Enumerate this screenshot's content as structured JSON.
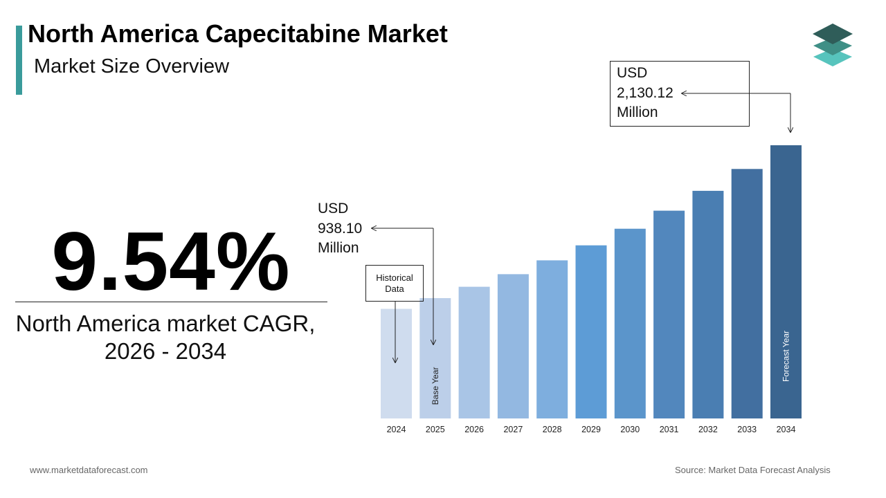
{
  "header": {
    "title": "North America Capecitabine Market",
    "subtitle": "Market Size Overview"
  },
  "cagr": {
    "value": "9.54%",
    "caption_line1": "North America market CAGR,",
    "caption_line2": "2026 - 2034"
  },
  "callouts": {
    "start": {
      "line1": "USD",
      "line2": "938.10",
      "line3": "Million"
    },
    "end": {
      "line1": "USD",
      "line2": "2,130.12",
      "line3": "Million"
    },
    "historical_line1": "Historical",
    "historical_line2": "Data"
  },
  "footer": {
    "website": "www.marketdataforecast.com",
    "source": "Source: Market Data Forecast Analysis"
  },
  "colors": {
    "accent": "#3a9b9b",
    "logo_top": "#2f5d59",
    "logo_middle": "#3f8f86",
    "logo_bottom": "#57c4bd"
  },
  "chart_data": {
    "type": "bar",
    "categories": [
      "2024",
      "2025",
      "2026",
      "2027",
      "2028",
      "2029",
      "2030",
      "2031",
      "2032",
      "2033",
      "2034"
    ],
    "values": [
      855,
      938.1,
      1027,
      1125,
      1233,
      1350,
      1479,
      1620,
      1775,
      1945,
      2130.12
    ],
    "bar_labels": {
      "2025": "Base Year",
      "2034": "Forecast Year"
    },
    "bar_colors": [
      "#cfdcee",
      "#bccfe9",
      "#a9c5e6",
      "#93b8e1",
      "#7eaede",
      "#5d9cd6",
      "#5b95cb",
      "#5287bd",
      "#4a7eb2",
      "#426fa0",
      "#3a6590"
    ],
    "grid": false,
    "legend": "none"
  }
}
